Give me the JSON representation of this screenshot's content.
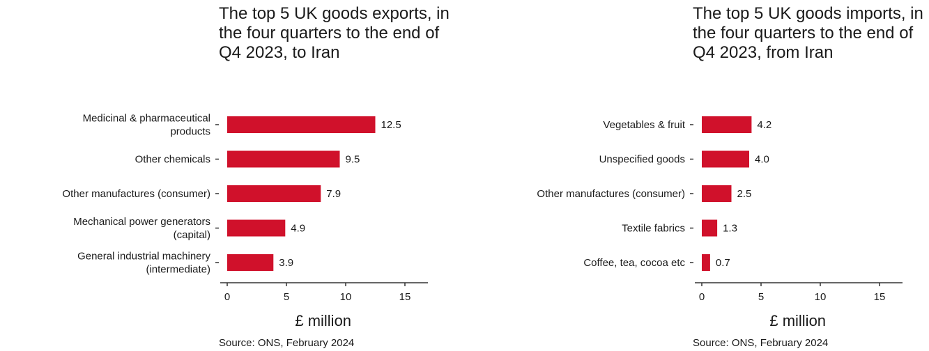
{
  "chart_data": [
    {
      "type": "bar",
      "orientation": "horizontal",
      "title": "The top 5 UK goods exports, in the four quarters to the end of Q4 2023, to Iran",
      "categories": [
        [
          "Medicinal & pharmaceutical",
          "products"
        ],
        [
          "Other chemicals"
        ],
        [
          "Other manufactures (consumer)"
        ],
        [
          "Mechanical power generators",
          "(capital)"
        ],
        [
          "General industrial machinery",
          "(intermediate)"
        ]
      ],
      "values": [
        12.5,
        9.5,
        7.9,
        4.9,
        3.9
      ],
      "value_labels": [
        "12.5",
        "9.5",
        "7.9",
        "4.9",
        "3.9"
      ],
      "xlabel": "£ million",
      "xlim": [
        0,
        17
      ],
      "xticks": [
        0,
        5,
        10,
        15
      ],
      "bar_color": "#d0112b",
      "source": "Source: ONS, February 2024"
    },
    {
      "type": "bar",
      "orientation": "horizontal",
      "title": "The top 5 UK goods imports, in the four quarters to the end of Q4 2023, from Iran",
      "categories": [
        [
          "Vegetables & fruit"
        ],
        [
          "Unspecified goods"
        ],
        [
          "Other manufactures (consumer)"
        ],
        [
          "Textile fabrics"
        ],
        [
          "Coffee, tea, cocoa etc"
        ]
      ],
      "values": [
        4.2,
        4.0,
        2.5,
        1.3,
        0.7
      ],
      "value_labels": [
        "4.2",
        "4.0",
        "2.5",
        "1.3",
        "0.7"
      ],
      "xlabel": "£ million",
      "xlim": [
        0,
        17
      ],
      "xticks": [
        0,
        5,
        10,
        15
      ],
      "bar_color": "#d0112b",
      "source": "Source: ONS, February 2024"
    }
  ]
}
